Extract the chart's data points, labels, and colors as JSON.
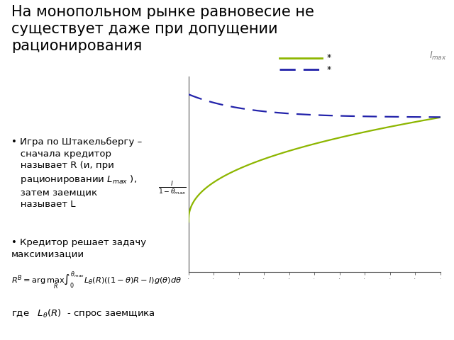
{
  "background_color": "#ffffff",
  "line1_color": "#8db600",
  "line2_color": "#2222aa",
  "legend_label1": "*",
  "legend_label2": "*",
  "title_line1": "На монопольном рынке равновесие не",
  "title_line2": "существует даже при допущении",
  "title_line3": "рационирования",
  "title_fontsize": 15,
  "bullet1_text": "• Игра по Штакельбергу –\n   сначала кредитор\n   называет R (и, при\n   рационировании $L_{max}$ ),\n   затем заемщик\n   называет L",
  "bullet2_text": "• Кредитор решает задачу\nмаксимизации",
  "formula_text": "$R^B = \\arg\\max_R \\int_0^{\\theta_{max}} L_\\theta(R)((1-\\theta)R - I)g(\\theta)d\\theta$",
  "where_text": "где   $L_{\\theta}(R)$  - спрос заемщика",
  "ylabel_text": "$\\frac{l}{1-\\theta_{max}}$",
  "lmax_text": "$l_{max}$"
}
